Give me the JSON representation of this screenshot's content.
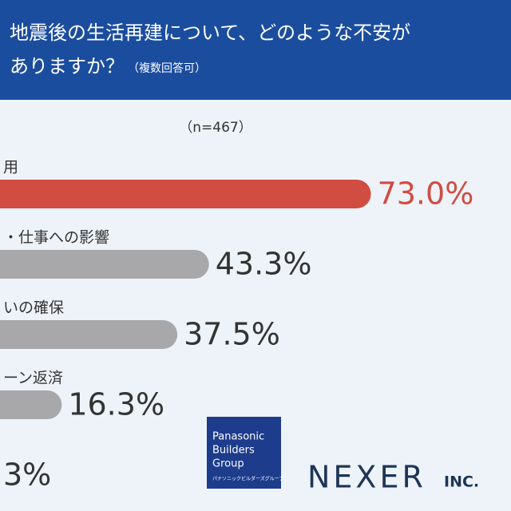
{
  "chart_data": {
    "type": "bar",
    "orientation": "horizontal",
    "title_line1": "地震後の生活再建について、どのような不安が",
    "title_line2": "ありますか？",
    "title_note": "（複数回答可）",
    "subtitle": "（n=467）",
    "categories": [
      "用",
      "・仕事への影響",
      "いの確保",
      "ーン返済",
      null
    ],
    "values": [
      73.0,
      43.3,
      37.5,
      16.3,
      3
    ],
    "value_labels": [
      "73.0%",
      "43.3%",
      "37.5%",
      "16.3%",
      "3%"
    ],
    "colors": [
      "#d14c41",
      "#a8a8aa",
      "#a8a8aa",
      "#a8a8aa",
      "#a8a8aa"
    ],
    "xlim": [
      0,
      100
    ]
  },
  "logos": {
    "panasonic": [
      "Panasonic",
      "Builders",
      "Group",
      "パナソニックビルダーズグループ"
    ],
    "nexer": "NEXER",
    "nexer_suffix": "INC."
  }
}
